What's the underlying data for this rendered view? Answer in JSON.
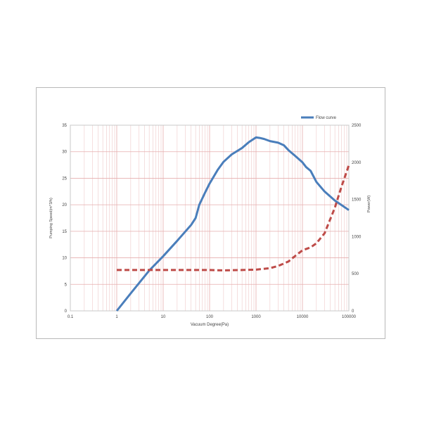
{
  "chart_data": {
    "type": "line",
    "xlabel": "Vacuum Degree(Pa)",
    "ylabel_left": "Pumping Speed(m^3/h)",
    "ylabel_right": "Power(W)",
    "x_scale": "log",
    "xlim": [
      0.1,
      100000
    ],
    "x_ticks": [
      0.1,
      1,
      10,
      100,
      1000,
      10000,
      100000
    ],
    "x_tick_labels": [
      "0.1",
      "1",
      "10",
      "100",
      "1000",
      "10000",
      "100000"
    ],
    "ylim_left": [
      0,
      35
    ],
    "y_left_ticks": [
      0,
      5,
      10,
      15,
      20,
      25,
      30,
      35
    ],
    "y_left_tick_labels": [
      "0",
      "5",
      "10",
      "15",
      "20",
      "25",
      "30",
      "35"
    ],
    "ylim_right": [
      0,
      2500
    ],
    "y_right_ticks": [
      0,
      500,
      1000,
      1500,
      2000,
      2500
    ],
    "y_right_tick_labels": [
      "0",
      "500",
      "1000",
      "1500",
      "2000",
      "2500"
    ],
    "grid": true,
    "legend_position": "top-right",
    "series": [
      {
        "name": "Flow curve",
        "axis": "left",
        "style": "solid",
        "color": "#4a7ebb",
        "x": [
          1,
          2,
          5,
          10,
          20,
          40,
          50,
          60,
          80,
          100,
          150,
          200,
          300,
          500,
          700,
          1000,
          1200,
          1500,
          2000,
          3000,
          4000,
          5000,
          7000,
          10000,
          12000,
          15000,
          20000,
          30000,
          50000,
          100000
        ],
        "y": [
          0,
          3.3,
          7.6,
          10.3,
          13.2,
          16.2,
          17.5,
          20.0,
          22.3,
          24.0,
          26.6,
          28.1,
          29.5,
          30.7,
          31.8,
          32.7,
          32.6,
          32.4,
          32.0,
          31.7,
          31.2,
          30.3,
          29.2,
          28.0,
          27.1,
          26.4,
          24.3,
          22.5,
          20.8,
          19.0
        ]
      },
      {
        "name": "",
        "axis": "right",
        "style": "dashed",
        "color": "#be4b48",
        "x": [
          1,
          5,
          10,
          50,
          100,
          200,
          500,
          1000,
          2000,
          3000,
          5000,
          7000,
          10000,
          15000,
          20000,
          30000,
          50000,
          70000,
          100000
        ],
        "y": [
          550,
          550,
          550,
          550,
          550,
          545,
          550,
          555,
          575,
          605,
          665,
          740,
          815,
          855,
          910,
          1045,
          1390,
          1680,
          1960
        ]
      }
    ]
  }
}
